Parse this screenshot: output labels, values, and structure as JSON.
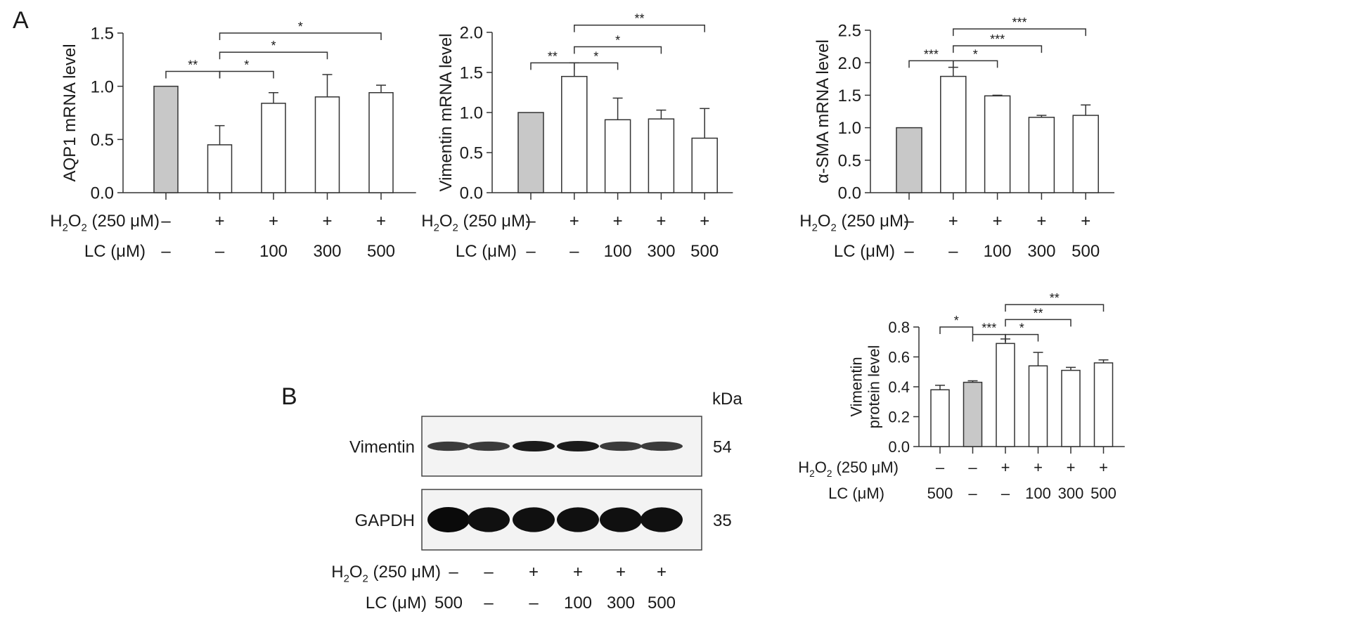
{
  "panel_labels": {
    "a": "A",
    "b": "B"
  },
  "treatment_labels": {
    "h2o2_prefix": "H",
    "h2o2_sub1": "2",
    "h2o2_mid": "O",
    "h2o2_sub2": "2",
    "h2o2_suffix": " (250 μM)",
    "lc": "LC (μM)"
  },
  "western_blot": {
    "kda_label": "kDa",
    "bands": [
      {
        "protein": "Vimentin",
        "kda": "54",
        "lane_intensity": [
          0.55,
          0.55,
          0.85,
          0.85,
          0.55,
          0.55
        ]
      },
      {
        "protein": "GAPDH",
        "kda": "35",
        "lane_intensity": [
          1.0,
          0.95,
          0.95,
          0.95,
          0.95,
          0.95
        ]
      }
    ],
    "h2o2_row": [
      "–",
      "–",
      "+",
      "+",
      "+",
      "+"
    ],
    "lc_row": [
      "500",
      "–",
      "–",
      "100",
      "300",
      "500"
    ]
  },
  "chart_data": [
    {
      "type": "bar",
      "ylabel": "AQP1 mRNA level",
      "ylim": [
        0,
        1.5
      ],
      "yticks": [
        "0.0",
        "0.5",
        "1.0",
        "1.5"
      ],
      "values": [
        1.0,
        0.45,
        0.84,
        0.9,
        0.94
      ],
      "errors": [
        0,
        0.18,
        0.1,
        0.21,
        0.07
      ],
      "fills": [
        "#c8c8c8",
        "#ffffff",
        "#ffffff",
        "#ffffff",
        "#ffffff"
      ],
      "h2o2_row": [
        "–",
        "+",
        "+",
        "+",
        "+"
      ],
      "lc_row": [
        "–",
        "–",
        "100",
        "300",
        "500"
      ],
      "significance": [
        {
          "from": 0,
          "to": 1,
          "label": "**",
          "level": 1.14
        },
        {
          "from": 1,
          "to": 2,
          "label": "*",
          "level": 1.14
        },
        {
          "from": 1,
          "to": 3,
          "label": "*",
          "level": 1.32
        },
        {
          "from": 1,
          "to": 4,
          "label": "*",
          "level": 1.5
        }
      ]
    },
    {
      "type": "bar",
      "ylabel": "Vimentin mRNA level",
      "ylim": [
        0,
        2.0
      ],
      "yticks": [
        "0.0",
        "0.5",
        "1.0",
        "1.5",
        "2.0"
      ],
      "values": [
        1.0,
        1.45,
        0.91,
        0.92,
        0.68
      ],
      "errors": [
        0,
        0.17,
        0.27,
        0.11,
        0.37
      ],
      "fills": [
        "#c8c8c8",
        "#ffffff",
        "#ffffff",
        "#ffffff",
        "#ffffff"
      ],
      "h2o2_row": [
        "–",
        "+",
        "+",
        "+",
        "+"
      ],
      "lc_row": [
        "–",
        "–",
        "100",
        "300",
        "500"
      ],
      "significance": [
        {
          "from": 0,
          "to": 1,
          "label": "**",
          "level": 1.62
        },
        {
          "from": 1,
          "to": 2,
          "label": "*",
          "level": 1.62
        },
        {
          "from": 1,
          "to": 3,
          "label": "*",
          "level": 1.82
        },
        {
          "from": 1,
          "to": 4,
          "label": "**",
          "level": 2.09
        }
      ]
    },
    {
      "type": "bar",
      "ylabel": "α-SMA mRNA level",
      "ylim": [
        0,
        2.5
      ],
      "yticks": [
        "0.0",
        "0.5",
        "1.0",
        "1.5",
        "2.0",
        "2.5"
      ],
      "values": [
        1.0,
        1.79,
        1.49,
        1.16,
        1.19
      ],
      "errors": [
        0,
        0.14,
        0.01,
        0.03,
        0.16
      ],
      "fills": [
        "#c8c8c8",
        "#ffffff",
        "#ffffff",
        "#ffffff",
        "#ffffff"
      ],
      "h2o2_row": [
        "–",
        "+",
        "+",
        "+",
        "+"
      ],
      "lc_row": [
        "–",
        "–",
        "100",
        "300",
        "500"
      ],
      "significance": [
        {
          "from": 0,
          "to": 1,
          "label": "***",
          "level": 2.03
        },
        {
          "from": 1,
          "to": 2,
          "label": "*",
          "level": 2.03
        },
        {
          "from": 1,
          "to": 3,
          "label": "***",
          "level": 2.26
        },
        {
          "from": 1,
          "to": 4,
          "label": "***",
          "level": 2.52
        }
      ]
    },
    {
      "type": "bar",
      "ylabel": "Vimentin\nprotein level",
      "ylim": [
        0,
        0.8
      ],
      "yticks": [
        "0.0",
        "0.2",
        "0.4",
        "0.6",
        "0.8"
      ],
      "values": [
        0.38,
        0.43,
        0.69,
        0.54,
        0.51,
        0.56
      ],
      "errors": [
        0.03,
        0.01,
        0.03,
        0.09,
        0.02,
        0.02
      ],
      "fills": [
        "#ffffff",
        "#c8c8c8",
        "#ffffff",
        "#ffffff",
        "#ffffff",
        "#ffffff"
      ],
      "h2o2_row": [
        "–",
        "–",
        "+",
        "+",
        "+",
        "+"
      ],
      "lc_row": [
        "500",
        "–",
        "–",
        "100",
        "300",
        "500"
      ],
      "significance": [
        {
          "from": 0,
          "to": 1,
          "label": "*",
          "level": 0.8
        },
        {
          "from": 1,
          "to": 2,
          "label": "***",
          "level": 0.75
        },
        {
          "from": 2,
          "to": 3,
          "label": "*",
          "level": 0.75
        },
        {
          "from": 2,
          "to": 4,
          "label": "**",
          "level": 0.85
        },
        {
          "from": 2,
          "to": 5,
          "label": "**",
          "level": 0.95
        }
      ]
    }
  ]
}
